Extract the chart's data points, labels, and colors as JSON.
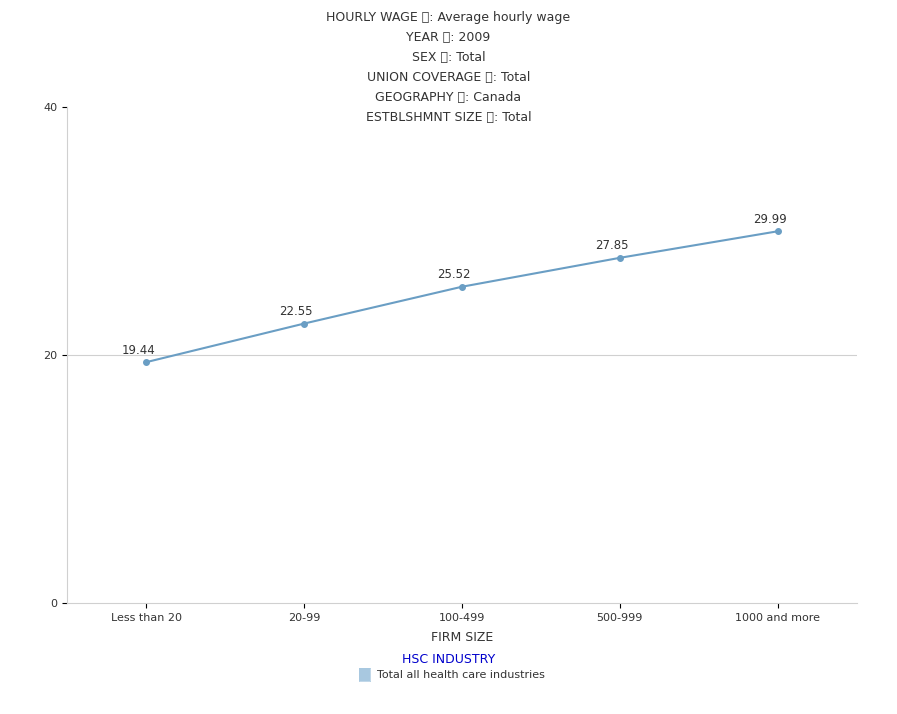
{
  "categories": [
    "Less than 20",
    "20-99",
    "100-499",
    "500-999",
    "1000 and more"
  ],
  "values": [
    19.44,
    22.55,
    25.52,
    27.85,
    29.99
  ],
  "line_color": "#6a9ec4",
  "marker_color": "#6a9ec4",
  "ylim": [
    0,
    40
  ],
  "yticks": [
    0,
    20,
    40
  ],
  "xlabel": "FIRM SIZE",
  "legend_title": "HSC INDUSTRY",
  "legend_label": "Total all health care industries",
  "legend_color": "#a8c8e0",
  "header_labels": [
    "HOURLY WAGE",
    "YEAR",
    "SEX",
    "UNION COVERAGE",
    "GEOGRAPHY",
    "ESTBLSHMNT SIZE"
  ],
  "header_rests": [
    ": Average hourly wage",
    ": 2009",
    ": Total",
    ": Total",
    ": Canada",
    ": Total"
  ],
  "bg_color": "#ffffff",
  "grid_color": "#d0d0d0",
  "label_color": "#333333",
  "header_blue": "#0000cc",
  "header_rest_color": "#333333",
  "font_size_header": 9,
  "font_size_axis": 8,
  "font_size_xlabel": 9,
  "font_size_data": 8.5,
  "font_size_legend_title": 9,
  "font_size_legend_label": 8
}
